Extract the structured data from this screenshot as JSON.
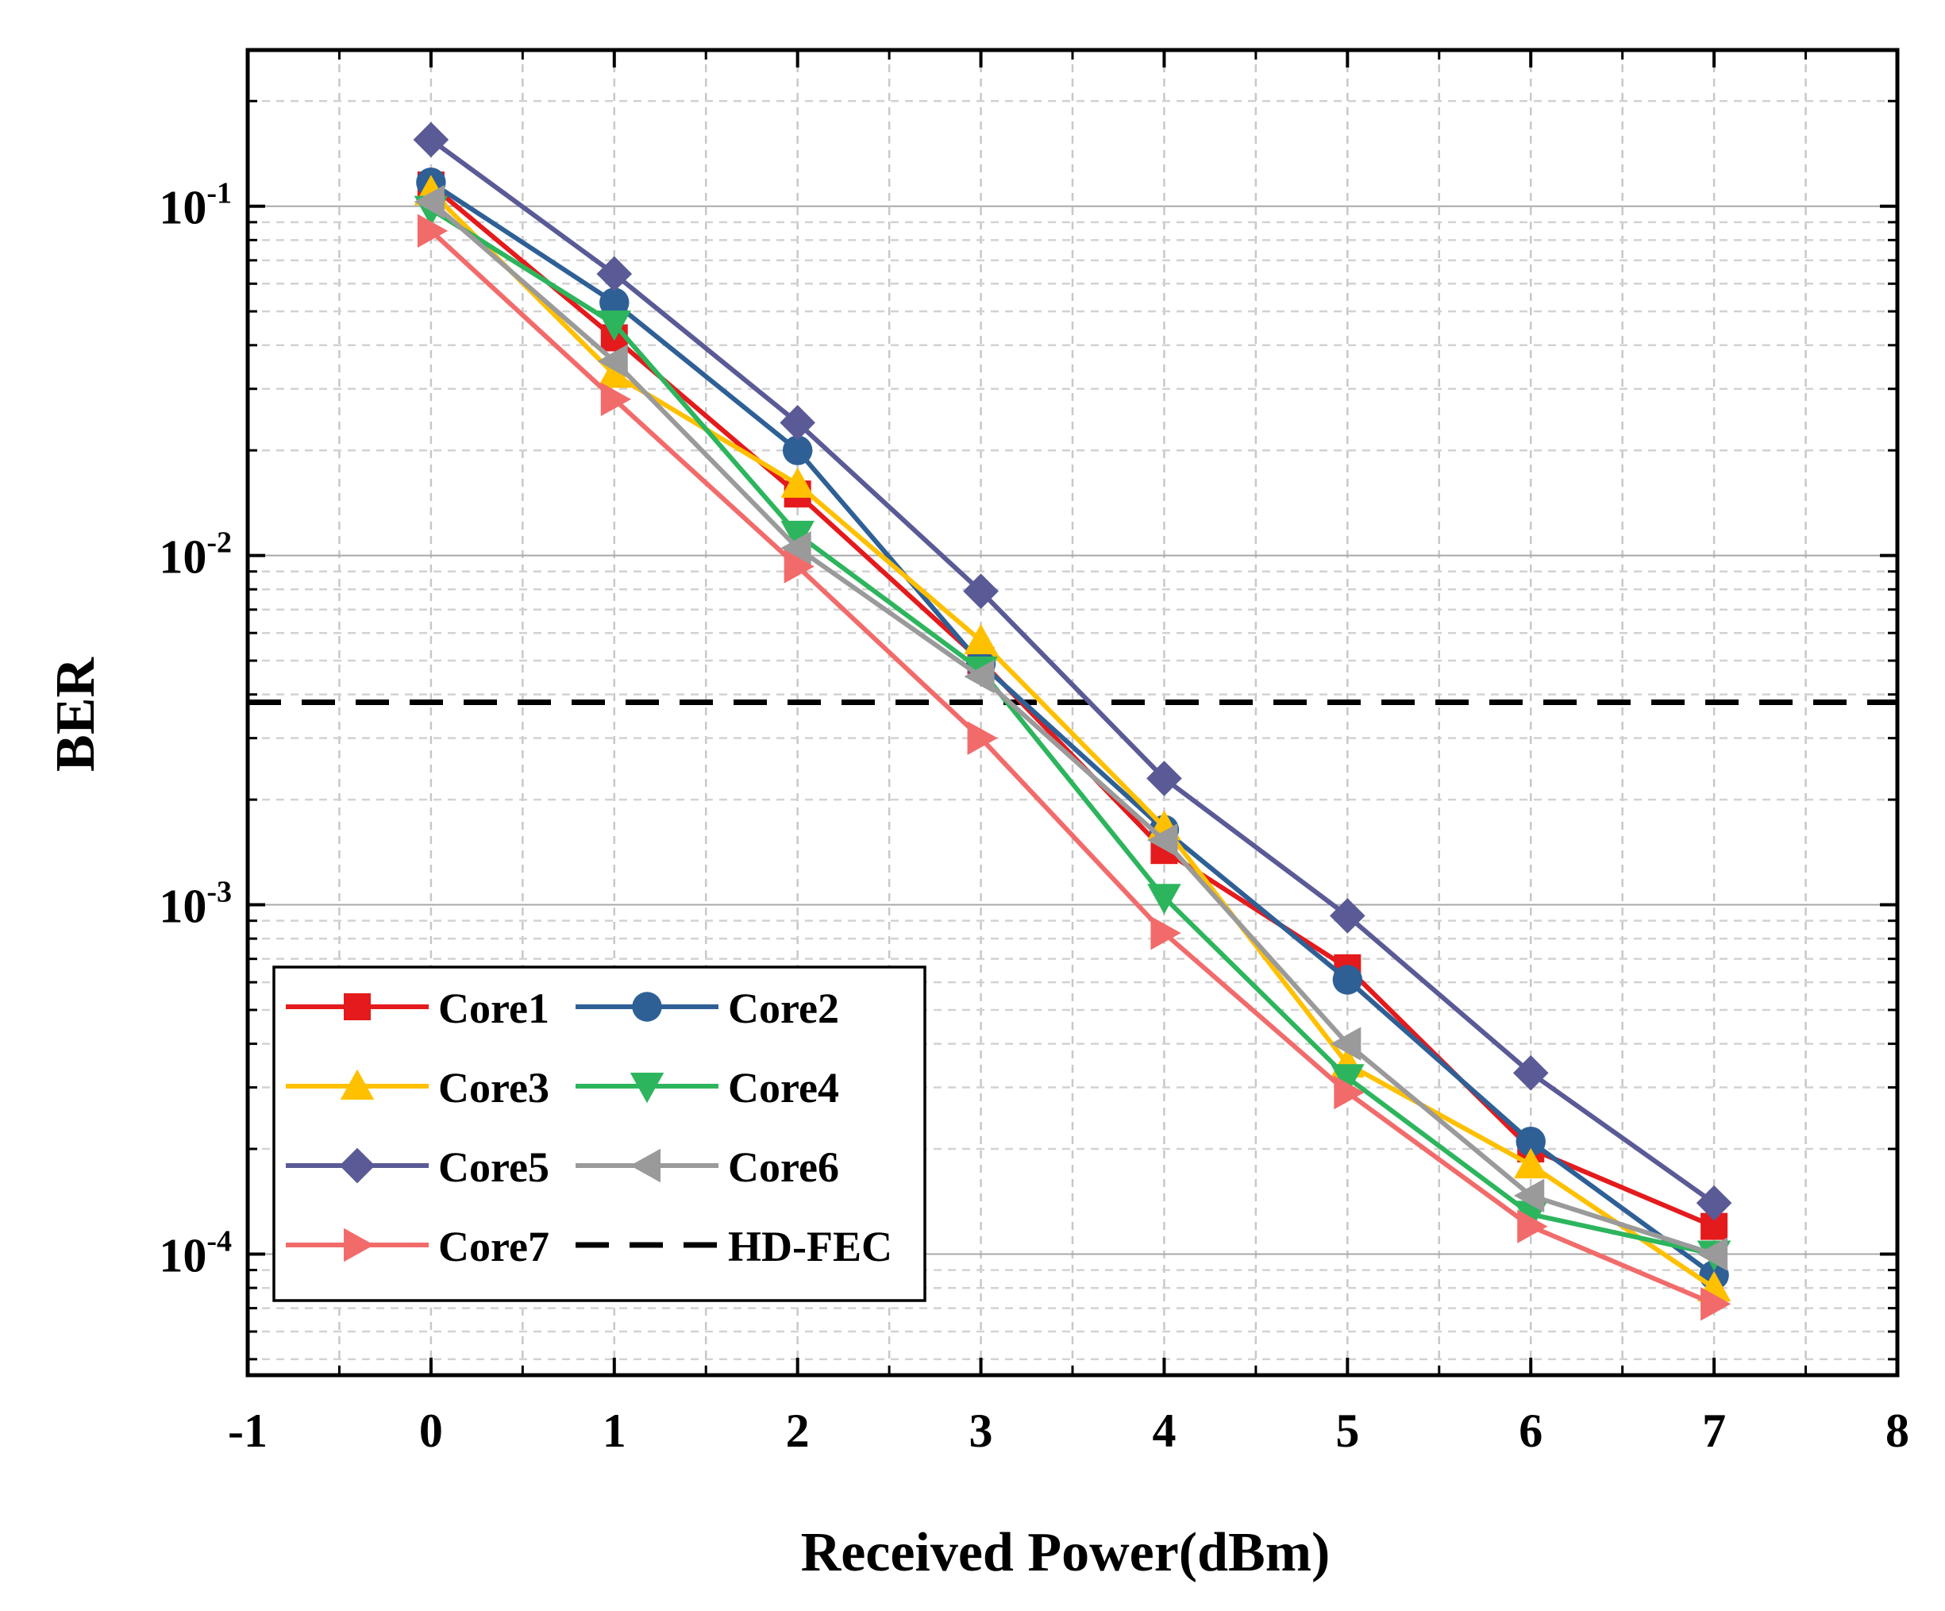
{
  "chart_data": {
    "type": "line",
    "title": "",
    "xlabel": "Received Power(dBm)",
    "ylabel": "BER",
    "xlim": [
      -1,
      8
    ],
    "ylim": [
      4.5e-05,
      0.28
    ],
    "y_scale": "log",
    "grid": true,
    "legend_position": "bottom-left",
    "x_ticks": [
      -1,
      0,
      1,
      2,
      3,
      4,
      5,
      6,
      7,
      8
    ],
    "x_tick_labels": [
      "-1",
      "0",
      "1",
      "2",
      "3",
      "4",
      "5",
      "6",
      "7",
      "8"
    ],
    "y_ticks": [
      0.0001,
      0.001,
      0.01,
      0.1
    ],
    "y_tick_labels": [
      {
        "base": "10",
        "exp": "-4"
      },
      {
        "base": "10",
        "exp": "-3"
      },
      {
        "base": "10",
        "exp": "-2"
      },
      {
        "base": "10",
        "exp": "-1"
      }
    ],
    "x": [
      0,
      1,
      2,
      3,
      4,
      5,
      6,
      7
    ],
    "series": [
      {
        "name": "Core1",
        "color": "#E41A1C",
        "marker": "square",
        "values": [
          0.115,
          0.042,
          0.015,
          0.005,
          0.00143,
          0.00066,
          0.0002,
          0.00012
        ]
      },
      {
        "name": "Core2",
        "color": "#2E6096",
        "marker": "circle",
        "values": [
          0.117,
          0.053,
          0.02,
          0.0049,
          0.00164,
          0.00061,
          0.00021,
          8.7e-05
        ]
      },
      {
        "name": "Core3",
        "color": "#FFC000",
        "marker": "triangle-up",
        "values": [
          0.11,
          0.033,
          0.016,
          0.0057,
          0.00167,
          0.00035,
          0.00018,
          8e-05
        ]
      },
      {
        "name": "Core4",
        "color": "#2DB55D",
        "marker": "triangle-down",
        "values": [
          0.098,
          0.046,
          0.0115,
          0.0047,
          0.00105,
          0.00032,
          0.00013,
          0.0001
        ]
      },
      {
        "name": "Core5",
        "color": "#5A5A96",
        "marker": "diamond",
        "values": [
          0.155,
          0.064,
          0.024,
          0.0079,
          0.0023,
          0.00093,
          0.00033,
          0.00014
        ]
      },
      {
        "name": "Core6",
        "color": "#9A9A9A",
        "marker": "triangle-left",
        "values": [
          0.103,
          0.036,
          0.0105,
          0.0045,
          0.00153,
          0.0004,
          0.000147,
          0.0001
        ]
      },
      {
        "name": "Core7",
        "color": "#F26B6B",
        "marker": "triangle-right",
        "values": [
          0.085,
          0.028,
          0.0093,
          0.003,
          0.00083,
          0.00029,
          0.00012,
          7.2e-05
        ]
      }
    ],
    "reference_lines": [
      {
        "name": "HD-FEC",
        "y": 0.0038,
        "color": "#000000",
        "style": "dashed"
      }
    ]
  }
}
